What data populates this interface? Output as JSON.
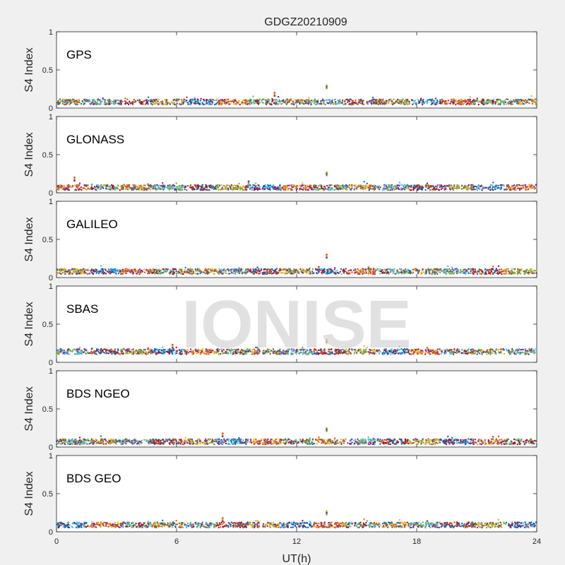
{
  "chart_data": {
    "type": "scatter",
    "title": "GDGZ20210909",
    "xlabel": "UT(h)",
    "ylabel": "S4 Index",
    "xlim": [
      0,
      24
    ],
    "ylim": [
      0,
      1
    ],
    "xticks": [
      "0",
      "6",
      "12",
      "18",
      "24"
    ],
    "yticks": [
      "0",
      "0.5",
      "1"
    ],
    "grid": false,
    "watermark": "IONISE",
    "series_colors": [
      "#0072BD",
      "#D95319",
      "#EDB120",
      "#7E2F8E",
      "#77AC30",
      "#4DBEEE",
      "#A2142F"
    ],
    "panels": [
      {
        "name": "GPS",
        "baseline": 0.08,
        "spikes": [
          {
            "x": 10.9,
            "y": 0.2
          },
          {
            "x": 13.5,
            "y": 0.3
          }
        ]
      },
      {
        "name": "GLONASS",
        "baseline": 0.07,
        "spikes": [
          {
            "x": 0.9,
            "y": 0.2
          },
          {
            "x": 13.5,
            "y": 0.27
          },
          {
            "x": 9.6,
            "y": 0.15
          }
        ]
      },
      {
        "name": "GALILEO",
        "baseline": 0.08,
        "spikes": [
          {
            "x": 13.5,
            "y": 0.3
          },
          {
            "x": 15.6,
            "y": 0.14
          }
        ]
      },
      {
        "name": "SBAS",
        "baseline": 0.14,
        "spikes": [
          {
            "x": 5.8,
            "y": 0.23
          },
          {
            "x": 13.5,
            "y": 0.3
          }
        ]
      },
      {
        "name": "BDS NGEO",
        "baseline": 0.07,
        "spikes": [
          {
            "x": 8.3,
            "y": 0.18
          },
          {
            "x": 13.5,
            "y": 0.25
          }
        ]
      },
      {
        "name": "BDS GEO",
        "baseline": 0.09,
        "spikes": [
          {
            "x": 8.3,
            "y": 0.18
          },
          {
            "x": 13.5,
            "y": 0.27
          }
        ]
      }
    ]
  }
}
